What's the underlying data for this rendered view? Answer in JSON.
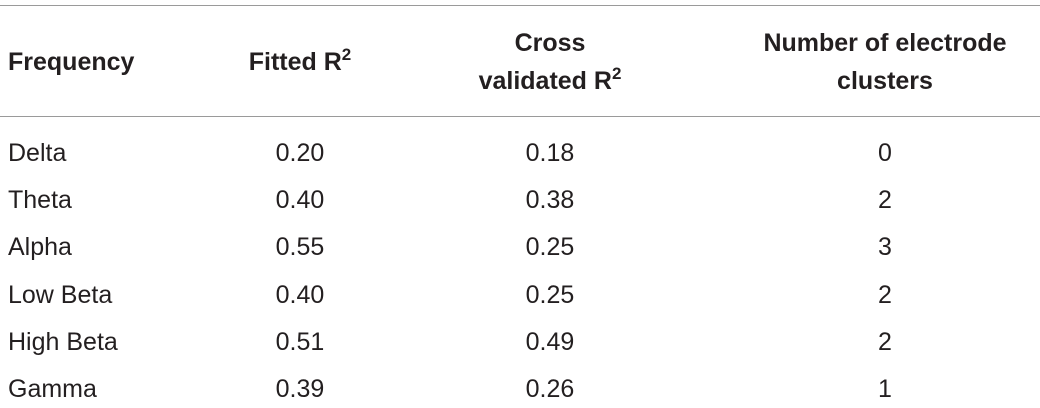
{
  "table": {
    "header": [
      {
        "text": "Frequency"
      },
      {
        "text": "Fitted R",
        "sup": "2"
      },
      {
        "text": "Cross validated R",
        "sup": "2"
      },
      {
        "text": "Number of electrode clusters"
      }
    ],
    "rows": [
      [
        "Delta",
        "0.20",
        "0.18",
        "0"
      ],
      [
        "Theta",
        "0.40",
        "0.38",
        "2"
      ],
      [
        "Alpha",
        "0.55",
        "0.25",
        "3"
      ],
      [
        "Low Beta",
        "0.40",
        "0.25",
        "2"
      ],
      [
        "High Beta",
        "0.51",
        "0.49",
        "2"
      ],
      [
        "Gamma",
        "0.39",
        "0.26",
        "1"
      ]
    ]
  }
}
